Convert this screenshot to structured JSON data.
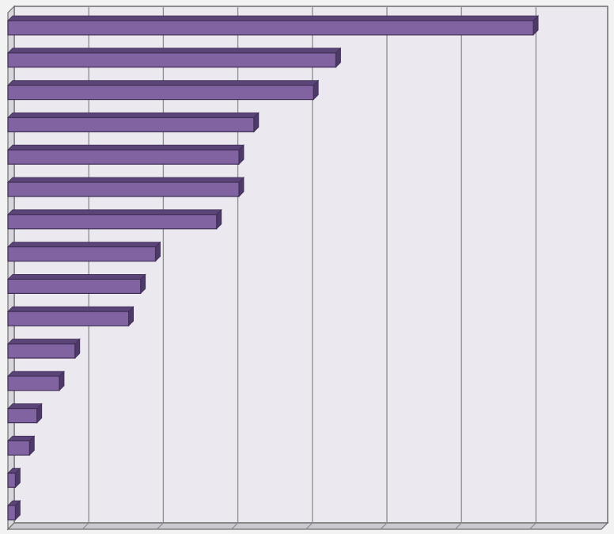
{
  "chart_data": {
    "type": "bar",
    "orientation": "horizontal",
    "style": "3d",
    "title": "",
    "xlabel": "",
    "ylabel": "",
    "categories": [
      "",
      "",
      "",
      "",
      "",
      "",
      "",
      "",
      "",
      "",
      "",
      "",
      "",
      "",
      "",
      ""
    ],
    "values": [
      7.05,
      4.4,
      4.1,
      3.3,
      3.1,
      3.1,
      2.8,
      1.98,
      1.78,
      1.62,
      0.9,
      0.69,
      0.39,
      0.29,
      0.1,
      0.1
    ],
    "xlim": [
      0,
      8
    ],
    "grid": true,
    "legend": "none",
    "colors": {
      "bar_front": "#8063a0",
      "bar_top": "#5b4478",
      "bar_side": "#4e3a68",
      "bar_edge": "#3f2f55",
      "plot_back": "#ebe8ef",
      "plot_floor": "#c9c9cf",
      "gridline": "#8c8c8c",
      "frame": "#6d6d6d",
      "page_background": "#f2f2f2"
    }
  }
}
